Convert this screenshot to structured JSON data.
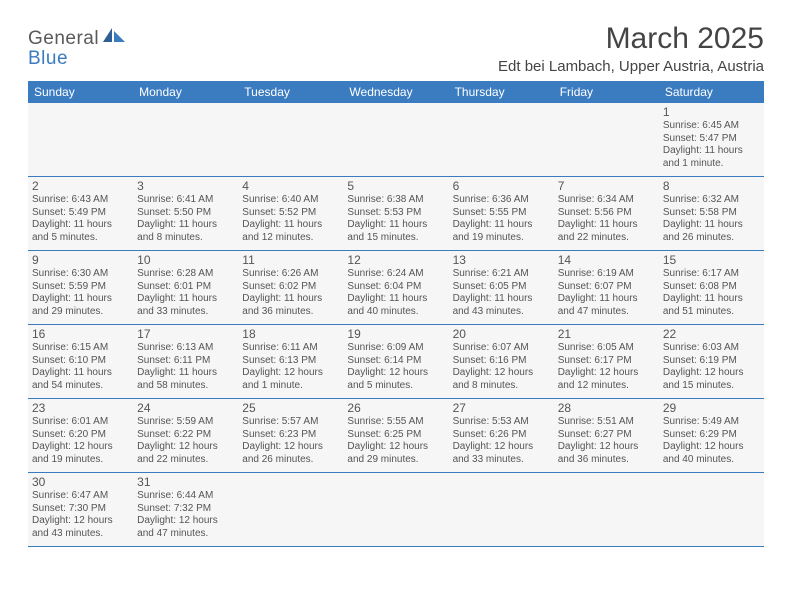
{
  "logo": {
    "part1": "General",
    "part2": "Blue"
  },
  "title": "March 2025",
  "location": "Edt bei Lambach, Upper Austria, Austria",
  "colors": {
    "header_bg": "#3b7bbf",
    "header_text": "#ffffff",
    "cell_bg": "#f6f6f6",
    "text": "#555555",
    "rule": "#3b7bbf"
  },
  "weekdays": [
    "Sunday",
    "Monday",
    "Tuesday",
    "Wednesday",
    "Thursday",
    "Friday",
    "Saturday"
  ],
  "weeks": [
    [
      null,
      null,
      null,
      null,
      null,
      null,
      {
        "n": "1",
        "sr": "Sunrise: 6:45 AM",
        "ss": "Sunset: 5:47 PM",
        "d1": "Daylight: 11 hours",
        "d2": "and 1 minute."
      }
    ],
    [
      {
        "n": "2",
        "sr": "Sunrise: 6:43 AM",
        "ss": "Sunset: 5:49 PM",
        "d1": "Daylight: 11 hours",
        "d2": "and 5 minutes."
      },
      {
        "n": "3",
        "sr": "Sunrise: 6:41 AM",
        "ss": "Sunset: 5:50 PM",
        "d1": "Daylight: 11 hours",
        "d2": "and 8 minutes."
      },
      {
        "n": "4",
        "sr": "Sunrise: 6:40 AM",
        "ss": "Sunset: 5:52 PM",
        "d1": "Daylight: 11 hours",
        "d2": "and 12 minutes."
      },
      {
        "n": "5",
        "sr": "Sunrise: 6:38 AM",
        "ss": "Sunset: 5:53 PM",
        "d1": "Daylight: 11 hours",
        "d2": "and 15 minutes."
      },
      {
        "n": "6",
        "sr": "Sunrise: 6:36 AM",
        "ss": "Sunset: 5:55 PM",
        "d1": "Daylight: 11 hours",
        "d2": "and 19 minutes."
      },
      {
        "n": "7",
        "sr": "Sunrise: 6:34 AM",
        "ss": "Sunset: 5:56 PM",
        "d1": "Daylight: 11 hours",
        "d2": "and 22 minutes."
      },
      {
        "n": "8",
        "sr": "Sunrise: 6:32 AM",
        "ss": "Sunset: 5:58 PM",
        "d1": "Daylight: 11 hours",
        "d2": "and 26 minutes."
      }
    ],
    [
      {
        "n": "9",
        "sr": "Sunrise: 6:30 AM",
        "ss": "Sunset: 5:59 PM",
        "d1": "Daylight: 11 hours",
        "d2": "and 29 minutes."
      },
      {
        "n": "10",
        "sr": "Sunrise: 6:28 AM",
        "ss": "Sunset: 6:01 PM",
        "d1": "Daylight: 11 hours",
        "d2": "and 33 minutes."
      },
      {
        "n": "11",
        "sr": "Sunrise: 6:26 AM",
        "ss": "Sunset: 6:02 PM",
        "d1": "Daylight: 11 hours",
        "d2": "and 36 minutes."
      },
      {
        "n": "12",
        "sr": "Sunrise: 6:24 AM",
        "ss": "Sunset: 6:04 PM",
        "d1": "Daylight: 11 hours",
        "d2": "and 40 minutes."
      },
      {
        "n": "13",
        "sr": "Sunrise: 6:21 AM",
        "ss": "Sunset: 6:05 PM",
        "d1": "Daylight: 11 hours",
        "d2": "and 43 minutes."
      },
      {
        "n": "14",
        "sr": "Sunrise: 6:19 AM",
        "ss": "Sunset: 6:07 PM",
        "d1": "Daylight: 11 hours",
        "d2": "and 47 minutes."
      },
      {
        "n": "15",
        "sr": "Sunrise: 6:17 AM",
        "ss": "Sunset: 6:08 PM",
        "d1": "Daylight: 11 hours",
        "d2": "and 51 minutes."
      }
    ],
    [
      {
        "n": "16",
        "sr": "Sunrise: 6:15 AM",
        "ss": "Sunset: 6:10 PM",
        "d1": "Daylight: 11 hours",
        "d2": "and 54 minutes."
      },
      {
        "n": "17",
        "sr": "Sunrise: 6:13 AM",
        "ss": "Sunset: 6:11 PM",
        "d1": "Daylight: 11 hours",
        "d2": "and 58 minutes."
      },
      {
        "n": "18",
        "sr": "Sunrise: 6:11 AM",
        "ss": "Sunset: 6:13 PM",
        "d1": "Daylight: 12 hours",
        "d2": "and 1 minute."
      },
      {
        "n": "19",
        "sr": "Sunrise: 6:09 AM",
        "ss": "Sunset: 6:14 PM",
        "d1": "Daylight: 12 hours",
        "d2": "and 5 minutes."
      },
      {
        "n": "20",
        "sr": "Sunrise: 6:07 AM",
        "ss": "Sunset: 6:16 PM",
        "d1": "Daylight: 12 hours",
        "d2": "and 8 minutes."
      },
      {
        "n": "21",
        "sr": "Sunrise: 6:05 AM",
        "ss": "Sunset: 6:17 PM",
        "d1": "Daylight: 12 hours",
        "d2": "and 12 minutes."
      },
      {
        "n": "22",
        "sr": "Sunrise: 6:03 AM",
        "ss": "Sunset: 6:19 PM",
        "d1": "Daylight: 12 hours",
        "d2": "and 15 minutes."
      }
    ],
    [
      {
        "n": "23",
        "sr": "Sunrise: 6:01 AM",
        "ss": "Sunset: 6:20 PM",
        "d1": "Daylight: 12 hours",
        "d2": "and 19 minutes."
      },
      {
        "n": "24",
        "sr": "Sunrise: 5:59 AM",
        "ss": "Sunset: 6:22 PM",
        "d1": "Daylight: 12 hours",
        "d2": "and 22 minutes."
      },
      {
        "n": "25",
        "sr": "Sunrise: 5:57 AM",
        "ss": "Sunset: 6:23 PM",
        "d1": "Daylight: 12 hours",
        "d2": "and 26 minutes."
      },
      {
        "n": "26",
        "sr": "Sunrise: 5:55 AM",
        "ss": "Sunset: 6:25 PM",
        "d1": "Daylight: 12 hours",
        "d2": "and 29 minutes."
      },
      {
        "n": "27",
        "sr": "Sunrise: 5:53 AM",
        "ss": "Sunset: 6:26 PM",
        "d1": "Daylight: 12 hours",
        "d2": "and 33 minutes."
      },
      {
        "n": "28",
        "sr": "Sunrise: 5:51 AM",
        "ss": "Sunset: 6:27 PM",
        "d1": "Daylight: 12 hours",
        "d2": "and 36 minutes."
      },
      {
        "n": "29",
        "sr": "Sunrise: 5:49 AM",
        "ss": "Sunset: 6:29 PM",
        "d1": "Daylight: 12 hours",
        "d2": "and 40 minutes."
      }
    ],
    [
      {
        "n": "30",
        "sr": "Sunrise: 6:47 AM",
        "ss": "Sunset: 7:30 PM",
        "d1": "Daylight: 12 hours",
        "d2": "and 43 minutes."
      },
      {
        "n": "31",
        "sr": "Sunrise: 6:44 AM",
        "ss": "Sunset: 7:32 PM",
        "d1": "Daylight: 12 hours",
        "d2": "and 47 minutes."
      },
      null,
      null,
      null,
      null,
      null
    ]
  ]
}
